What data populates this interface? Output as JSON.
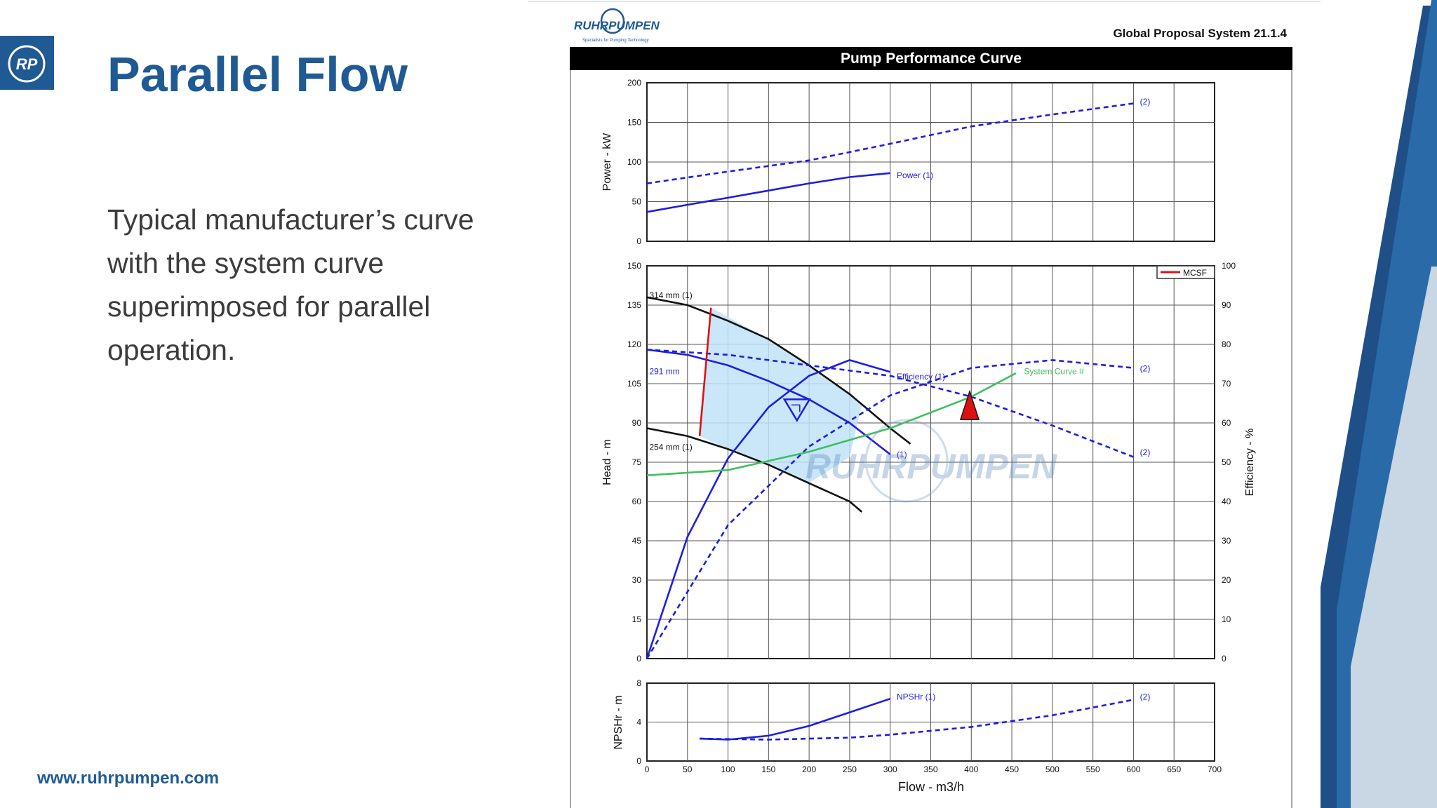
{
  "slide": {
    "title": "Parallel Flow",
    "body_lines": [
      "Typical manufacturer’s curve",
      "with the system curve",
      "superimposed for parallel",
      "operation."
    ],
    "website": "www.ruhrpumpen.com",
    "logo_text": "RP",
    "accent_color": "#1f5a94"
  },
  "document": {
    "brand": "RUHRPUMPEN",
    "tagline": "Specialists for Pumping Technology",
    "system_label": "Global Proposal System 21.1.4",
    "header_title": "Pump Performance Curve",
    "watermark": "RUHRPUMPEN"
  },
  "chart_data": [
    {
      "type": "line",
      "title": "",
      "xlabel": "",
      "ylabel": "Power - kW",
      "xlim": [
        0,
        700
      ],
      "ylim": [
        0,
        200
      ],
      "y_ticks": [
        0,
        50,
        100,
        150,
        200
      ],
      "grid": true,
      "series": [
        {
          "name": "Power (1)",
          "style": "solid",
          "color": "#1e1ee0",
          "x": [
            0,
            50,
            100,
            150,
            200,
            250,
            300
          ],
          "y": [
            37,
            46,
            55,
            64,
            73,
            81,
            86
          ]
        },
        {
          "name": "(2)",
          "style": "dashed",
          "color": "#1e1ee0",
          "x": [
            0,
            100,
            200,
            300,
            400,
            500,
            600
          ],
          "y": [
            73,
            88,
            102,
            123,
            145,
            160,
            174
          ]
        }
      ]
    },
    {
      "type": "line",
      "title": "",
      "xlabel": "",
      "ylabel": "Head - m",
      "y2label": "Efficiency - %",
      "xlim": [
        0,
        700
      ],
      "ylim": [
        0,
        150
      ],
      "y_ticks": [
        0,
        15,
        30,
        45,
        60,
        75,
        90,
        105,
        120,
        135,
        150
      ],
      "y2lim": [
        0,
        100
      ],
      "y2_ticks": [
        0,
        10,
        20,
        30,
        40,
        50,
        60,
        70,
        80,
        90,
        100
      ],
      "grid": true,
      "legend": {
        "position": "top-right",
        "entries": [
          {
            "label": "MCSF",
            "color": "#e01010"
          }
        ]
      },
      "series": [
        {
          "name": "314 mm (1)",
          "style": "solid",
          "color": "#111111",
          "axis": "head",
          "x": [
            0,
            50,
            100,
            150,
            200,
            250,
            300,
            325
          ],
          "y": [
            138,
            135,
            129,
            122,
            112,
            101,
            88,
            82
          ]
        },
        {
          "name": "291 mm",
          "style": "solid",
          "color": "#1e1ee0",
          "axis": "head",
          "x": [
            0,
            50,
            100,
            150,
            200,
            250,
            300
          ],
          "y": [
            118,
            116,
            112,
            106,
            99,
            90,
            78
          ]
        },
        {
          "name": "254 mm (1)",
          "style": "solid",
          "color": "#111111",
          "axis": "head",
          "x": [
            0,
            50,
            100,
            150,
            200,
            250,
            265
          ],
          "y": [
            88,
            85,
            80,
            74,
            67,
            60,
            56
          ]
        },
        {
          "name": "(2)",
          "style": "dashed",
          "color": "#1e1ee0",
          "axis": "head",
          "x": [
            0,
            100,
            200,
            300,
            400,
            500,
            600
          ],
          "y": [
            118,
            116,
            112,
            108,
            100,
            89,
            77
          ]
        },
        {
          "name": "Efficiency (1)",
          "style": "solid",
          "color": "#1e1ee0",
          "axis": "efficiency",
          "x": [
            0,
            50,
            100,
            150,
            200,
            250,
            300
          ],
          "y": [
            0,
            31,
            51,
            64,
            72,
            76,
            73
          ]
        },
        {
          "name": "(2)",
          "style": "dashed",
          "color": "#1e1ee0",
          "axis": "efficiency",
          "x": [
            0,
            100,
            200,
            300,
            400,
            500,
            600
          ],
          "y": [
            0,
            34,
            54,
            67,
            74,
            76,
            74
          ]
        },
        {
          "name": "System Curve #",
          "style": "solid",
          "color": "#3fbf5f",
          "axis": "head",
          "x": [
            0,
            100,
            200,
            300,
            400,
            455
          ],
          "y": [
            70,
            72,
            79,
            88,
            100,
            109
          ]
        },
        {
          "name": "MCSF",
          "style": "solid",
          "color": "#e01010",
          "axis": "head",
          "x": [
            79,
            65
          ],
          "y": [
            134,
            85
          ]
        }
      ],
      "annotations": [
        "314 mm (1)",
        "291 mm",
        "254 mm (1)",
        "Efficiency (1)",
        "System Curve #",
        "(1)",
        "(2)",
        "(2)"
      ],
      "operating_point": {
        "x": 398,
        "y": 94
      }
    },
    {
      "type": "line",
      "title": "",
      "xlabel": "Flow - m3/h",
      "ylabel": "NPSHr - m",
      "xlim": [
        0,
        700
      ],
      "ylim": [
        0,
        8
      ],
      "x_ticks": [
        0,
        50,
        100,
        150,
        200,
        250,
        300,
        350,
        400,
        450,
        500,
        550,
        600,
        650,
        700
      ],
      "y_ticks": [
        0,
        4,
        8
      ],
      "grid": true,
      "series": [
        {
          "name": "NPSHr (1)",
          "style": "solid",
          "color": "#1e1ee0",
          "x": [
            65,
            100,
            150,
            200,
            250,
            300
          ],
          "y": [
            2.3,
            2.2,
            2.6,
            3.6,
            5.0,
            6.4
          ]
        },
        {
          "name": "(2)",
          "style": "dashed",
          "color": "#1e1ee0",
          "x": [
            65,
            150,
            250,
            300,
            400,
            500,
            600
          ],
          "y": [
            2.3,
            2.2,
            2.4,
            2.7,
            3.5,
            4.7,
            6.3
          ]
        }
      ]
    }
  ]
}
